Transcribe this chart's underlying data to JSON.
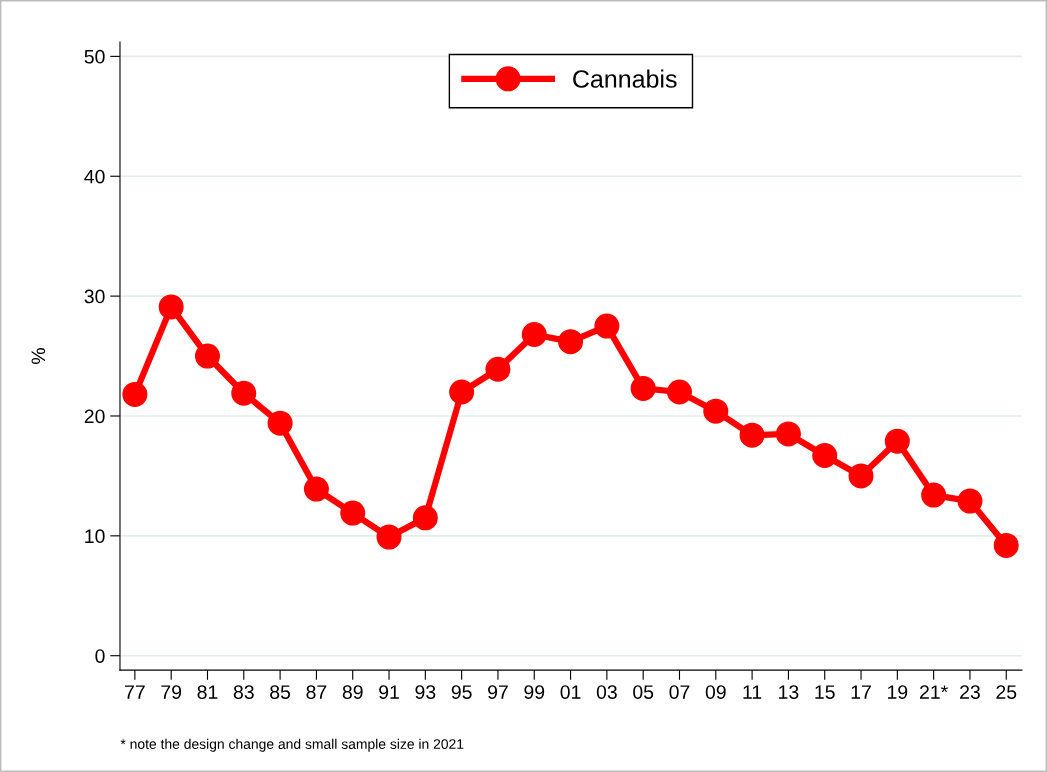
{
  "chart_data": {
    "type": "line",
    "ylabel": "%",
    "categories": [
      "77",
      "79",
      "81",
      "83",
      "85",
      "87",
      "89",
      "91",
      "93",
      "95",
      "97",
      "99",
      "01",
      "03",
      "05",
      "07",
      "09",
      "11",
      "13",
      "15",
      "17",
      "19",
      "21*",
      "23",
      "25"
    ],
    "series": [
      {
        "name": "Cannabis",
        "color": "#ff0000",
        "values": [
          21.8,
          29.1,
          25.0,
          21.9,
          19.4,
          13.9,
          11.9,
          9.9,
          11.5,
          22.0,
          23.9,
          26.8,
          26.2,
          27.5,
          22.3,
          22.0,
          20.4,
          18.4,
          18.5,
          16.7,
          15.0,
          17.9,
          13.4,
          12.9,
          9.2
        ]
      }
    ],
    "ylim": [
      -1.2,
      51.2
    ],
    "yticks": [
      0,
      10,
      20,
      30,
      40,
      50
    ],
    "grid": "y",
    "legend": "top",
    "marker": "circle",
    "line_style": "solid",
    "annotations": [
      "* note the design change and small sample size in 2021"
    ]
  }
}
